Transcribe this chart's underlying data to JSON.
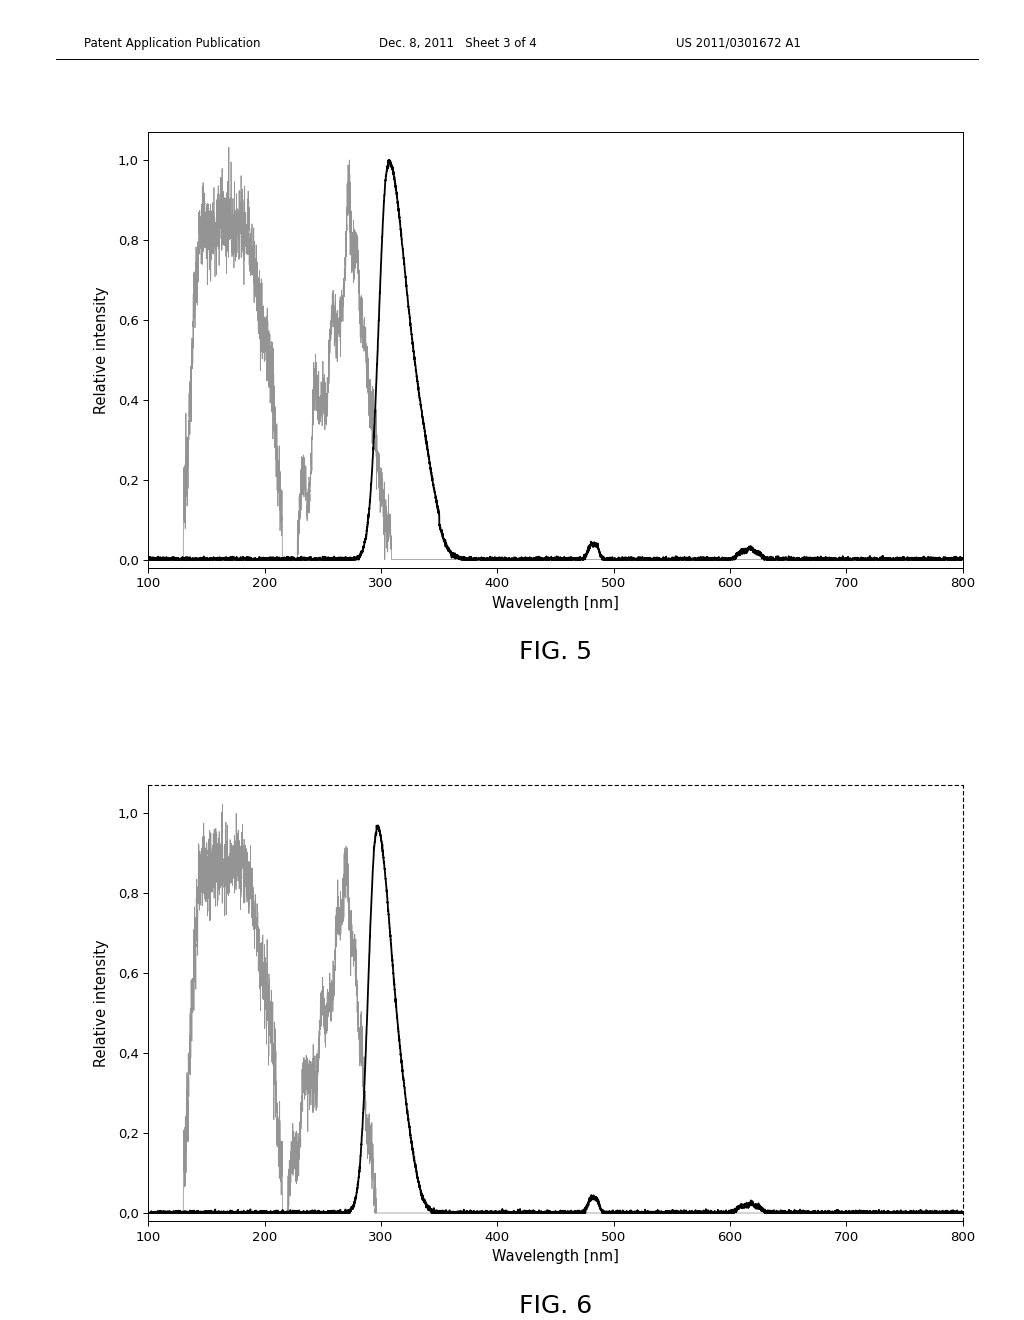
{
  "header_left": "Patent Application Publication",
  "header_mid": "Dec. 8, 2011   Sheet 3 of 4",
  "header_right": "US 2011/0301672 A1",
  "fig5_label": "FIG. 5",
  "fig6_label": "FIG. 6",
  "xlabel": "Wavelength [nm]",
  "ylabel": "Relative intensity",
  "xlim": [
    100,
    800
  ],
  "ylim": [
    -0.02,
    1.07
  ],
  "yticks": [
    0.0,
    0.2,
    0.4,
    0.6,
    0.8,
    1.0
  ],
  "ytick_labels": [
    "0,0",
    "0,2",
    "0,4",
    "0,6",
    "0,8",
    "1,0"
  ],
  "xticks": [
    100,
    200,
    300,
    400,
    500,
    600,
    700,
    800
  ],
  "background_color": "#ffffff",
  "line_color_black": "#000000",
  "line_color_gray": "#888888"
}
